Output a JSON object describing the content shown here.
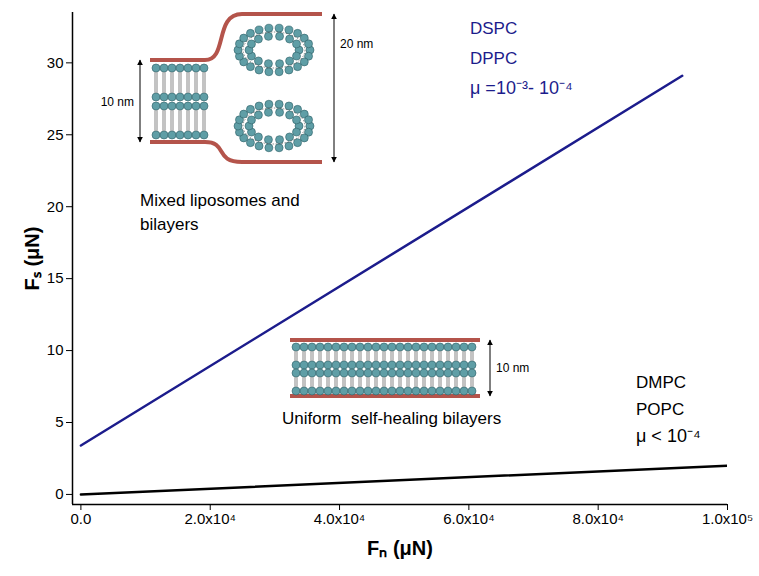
{
  "chart_data": {
    "type": "line",
    "x_label": "Fₙ (μN)",
    "y_label": "Fₛ (μN)",
    "xlim": [
      -1300,
      100000
    ],
    "ylim": [
      -0.7,
      33.5
    ],
    "xticks": [
      {
        "value": 0,
        "label": "0.0"
      },
      {
        "value": 20000,
        "label": "2.0x10⁴"
      },
      {
        "value": 40000,
        "label": "4.0x10⁴"
      },
      {
        "value": 60000,
        "label": "6.0x10⁴"
      },
      {
        "value": 80000,
        "label": "8.0x10⁴"
      },
      {
        "value": 100000,
        "label": "1.0x10⁵"
      }
    ],
    "yticks": [
      0,
      5,
      10,
      15,
      20,
      25,
      30
    ],
    "series": [
      {
        "color": "#1c1c8c",
        "x": [
          0,
          93000
        ],
        "values": [
          3.4,
          29.1
        ],
        "annotation": [
          "DSPC",
          "DPPC",
          "μ =10⁻³- 10⁻⁴"
        ]
      },
      {
        "color": "#000000",
        "x": [
          0,
          100000
        ],
        "values": [
          0,
          2.0
        ],
        "annotation": [
          "DMPC",
          "POPC",
          "μ < 10⁻⁴"
        ]
      }
    ],
    "insets": [
      {
        "caption": [
          "Mixed liposomes and",
          "bilayers"
        ],
        "dimensions": [
          "10 nm",
          "20 nm"
        ]
      },
      {
        "caption": [
          "Uniform  self-healing bilayers"
        ],
        "dimensions": [
          "10 nm"
        ]
      }
    ]
  }
}
